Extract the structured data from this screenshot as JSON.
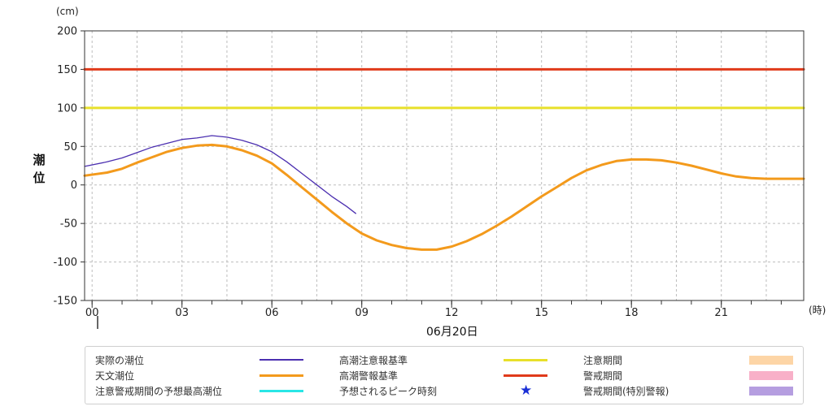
{
  "unit_y": "(cm)",
  "unit_x": "(時)",
  "y_title": [
    "潮",
    "位"
  ],
  "date_label": "06月20日",
  "chart_data": {
    "type": "line",
    "ylim": [
      -150,
      200
    ],
    "xlim": [
      -0.25,
      23.75
    ],
    "y_ticks": [
      200,
      150,
      100,
      50,
      0,
      -50,
      -100,
      -150
    ],
    "x_ticks": [
      0,
      3,
      6,
      9,
      12,
      15,
      18,
      21
    ],
    "x_tick_labels": [
      "00",
      "03",
      "06",
      "09",
      "12",
      "15",
      "18",
      "21"
    ],
    "grid": true,
    "series": [
      {
        "name": "実際の潮位",
        "color": "#4b2fb0",
        "x": [
          -0.25,
          0.5,
          1.0,
          1.5,
          2.0,
          2.5,
          3.0,
          3.5,
          4.0,
          4.5,
          5.0,
          5.5,
          6.0,
          6.5,
          7.0,
          7.5,
          8.0,
          8.5,
          8.8
        ],
        "y": [
          24,
          30,
          35,
          42,
          49,
          54,
          59,
          61,
          64,
          62,
          58,
          52,
          43,
          30,
          15,
          0,
          -15,
          -28,
          -37
        ]
      },
      {
        "name": "天文潮位",
        "color": "#f39a1c",
        "x": [
          -0.25,
          0.5,
          1.0,
          1.5,
          2.0,
          2.5,
          3.0,
          3.5,
          4.0,
          4.5,
          5.0,
          5.5,
          6.0,
          6.5,
          7.0,
          7.5,
          8.0,
          8.5,
          9.0,
          9.5,
          10.0,
          10.5,
          11.0,
          11.5,
          12.0,
          12.5,
          13.0,
          13.5,
          14.0,
          14.5,
          15.0,
          15.5,
          16.0,
          16.5,
          17.0,
          17.5,
          18.0,
          18.5,
          19.0,
          19.5,
          20.0,
          20.5,
          21.0,
          21.5,
          22.0,
          22.5,
          23.0,
          23.5,
          23.75
        ],
        "y": [
          12,
          16,
          21,
          29,
          36,
          43,
          48,
          51,
          52,
          50,
          45,
          38,
          28,
          13,
          -3,
          -19,
          -35,
          -50,
          -63,
          -72,
          -78,
          -82,
          -84,
          -84,
          -80,
          -73,
          -64,
          -53,
          -41,
          -28,
          -15,
          -3,
          9,
          19,
          26,
          31,
          33,
          33,
          32,
          29,
          25,
          20,
          15,
          11,
          9,
          8,
          8,
          8,
          8
        ]
      },
      {
        "name": "高潮注意報基準",
        "color": "#e8e02a",
        "x": [
          -0.25,
          23.75
        ],
        "y": [
          100,
          100
        ]
      },
      {
        "name": "高潮警報基準",
        "color": "#e03a1a",
        "x": [
          -0.25,
          23.75
        ],
        "y": [
          150,
          150
        ]
      }
    ]
  },
  "legend": [
    {
      "label": "実際の潮位",
      "kind": "line",
      "color": "#4b2fb0",
      "thin": true
    },
    {
      "label": "高潮注意報基準",
      "kind": "line",
      "color": "#e8e02a"
    },
    {
      "label": "注意期間",
      "kind": "box",
      "color": "#fdd5a6"
    },
    {
      "label": "天文潮位",
      "kind": "line",
      "color": "#f39a1c"
    },
    {
      "label": "高潮警報基準",
      "kind": "line",
      "color": "#e03a1a"
    },
    {
      "label": "警戒期間",
      "kind": "box",
      "color": "#f8b0c8"
    },
    {
      "label": "注意警戒期間の予想最高潮位",
      "kind": "line",
      "color": "#29e6e6"
    },
    {
      "label": "予想されるピーク時刻",
      "kind": "star",
      "color": "#1a2fd6",
      "symbol": "★"
    },
    {
      "label": "警戒期間(特別警報)",
      "kind": "box",
      "color": "#b59ee0"
    }
  ]
}
